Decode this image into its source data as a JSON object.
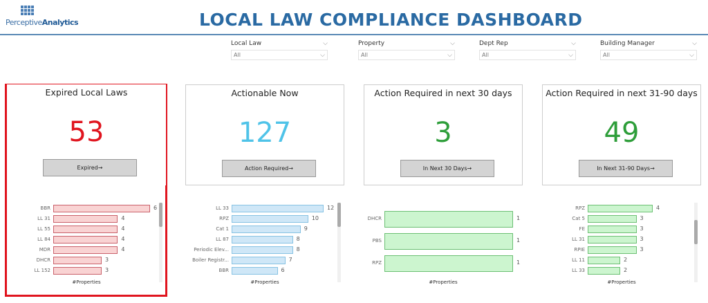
{
  "header": {
    "logo_text_light": "Perceptive",
    "logo_text_bold": "Analytics",
    "title": "LOCAL LAW COMPLIANCE DASHBOARD"
  },
  "filters": [
    {
      "label": "Local Law",
      "value": "All"
    },
    {
      "label": "Property",
      "value": "All"
    },
    {
      "label": "Dept Rep",
      "value": "All"
    },
    {
      "label": "Building Manager",
      "value": "All"
    }
  ],
  "cards": [
    {
      "title": "Expired Local Laws",
      "value": "53",
      "color": "#e0141e",
      "button": "Expired→",
      "selected": true
    },
    {
      "title": "Actionable Now",
      "value": "127",
      "color": "#4fc3e8",
      "button": "Action Required→"
    },
    {
      "title": "Action Required in next 30 days",
      "value": "3",
      "color": "#2e9e3a",
      "button": "In Next 30 Days→"
    },
    {
      "title": "Action Required in next 31-90 days",
      "value": "49",
      "color": "#2e9e3a",
      "button": "In Next 31-90 Days→"
    }
  ],
  "chart_data": [
    {
      "type": "bar",
      "orientation": "horizontal",
      "xlabel": "#Properties",
      "fill": "#f9d3d3",
      "stroke": "#c9606a",
      "categories": [
        "BBR",
        "LL 31",
        "LL 55",
        "LL 84",
        "MDR",
        "DHCR",
        "LL 152"
      ],
      "values": [
        6,
        4,
        4,
        4,
        4,
        3,
        3
      ],
      "scrollable": true
    },
    {
      "type": "bar",
      "orientation": "horizontal",
      "xlabel": "#Properties",
      "fill": "#cfe7f7",
      "stroke": "#86c2e3",
      "categories": [
        "LL 33",
        "RPZ",
        "Cat 1",
        "LL 87",
        "Periodic Elev...",
        "Boiler Registr...",
        "BBR"
      ],
      "values": [
        12,
        10,
        9,
        8,
        8,
        7,
        6
      ],
      "scrollable": true
    },
    {
      "type": "bar",
      "orientation": "horizontal",
      "xlabel": "#Properties",
      "fill": "#ccf5cf",
      "stroke": "#6bbf73",
      "categories": [
        "DHCR",
        "PBS",
        "RPZ"
      ],
      "values": [
        1,
        1,
        1
      ],
      "scrollable": false
    },
    {
      "type": "bar",
      "orientation": "horizontal",
      "xlabel": "#Properties",
      "fill": "#ccf5cf",
      "stroke": "#6bbf73",
      "categories": [
        "RPZ",
        "Cat 5",
        "FE",
        "LL 31",
        "RPIE",
        "LL 11",
        "LL 33"
      ],
      "values": [
        4,
        3,
        3,
        3,
        3,
        2,
        2
      ],
      "scrollable": true
    }
  ]
}
